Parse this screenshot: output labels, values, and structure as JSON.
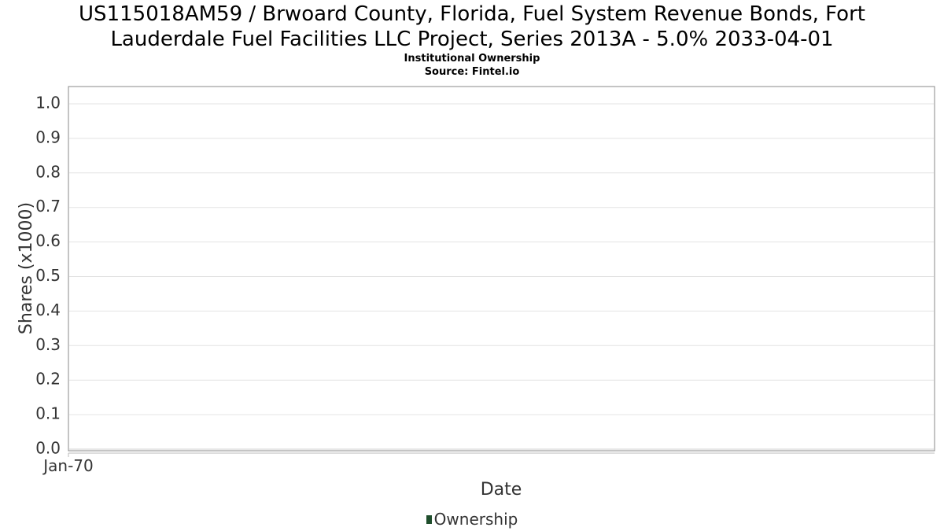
{
  "chart_data": {
    "type": "area",
    "title": "US115018AM59 / Brwoard County, Florida, Fuel System Revenue Bonds, Fort Lauderdale Fuel Facilities LLC Project, Series 2013A - 5.0% 2033-04-01",
    "title_lines": [
      "US115018AM59 / Brwoard County, Florida, Fuel System Revenue Bonds, Fort",
      "Lauderdale Fuel Facilities LLC Project, Series 2013A - 5.0% 2033-04-01"
    ],
    "subtitle": "Institutional Ownership",
    "source": "Source: Fintel.io",
    "xlabel": "Date",
    "ylabel": "Shares (x1000)",
    "x_ticks": [
      "Jan-70"
    ],
    "y_ticks": [
      "0.0",
      "0.1",
      "0.2",
      "0.3",
      "0.4",
      "0.5",
      "0.6",
      "0.7",
      "0.8",
      "0.9",
      "1.0"
    ],
    "ylim": [
      0,
      1.05
    ],
    "grid": true,
    "legend_position": "bottom-center",
    "series": [
      {
        "name": "Ownership",
        "color": "#1f4e2c",
        "values": []
      }
    ]
  }
}
